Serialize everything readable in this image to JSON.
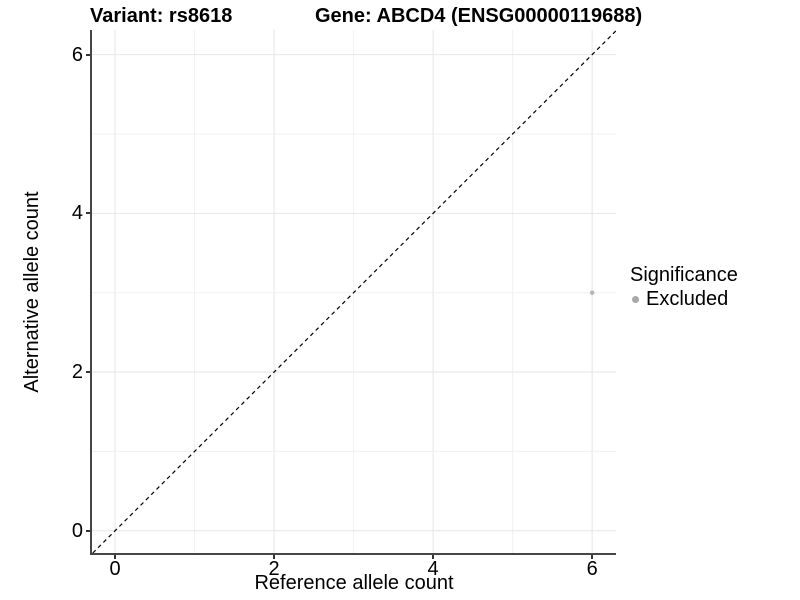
{
  "chart_data": {
    "type": "scatter",
    "title_left": "Variant: rs8618",
    "title_right": "Gene: ABCD4 (ENSG00000119688)",
    "xlabel": "Reference allele count",
    "ylabel": "Alternative allele count",
    "xlim": [
      -0.29,
      6.3
    ],
    "ylim": [
      -0.28,
      6.31
    ],
    "x_ticks": [
      0,
      2,
      4,
      6
    ],
    "y_ticks": [
      0,
      2,
      4,
      6
    ],
    "grid_x": [
      0,
      1,
      2,
      3,
      4,
      5,
      6
    ],
    "grid_y": [
      0,
      1,
      2,
      3,
      4,
      5,
      6
    ],
    "grid_on": true,
    "reference_line": {
      "kind": "identity",
      "equation": "y = x",
      "style": "dashed",
      "color": "#000000"
    },
    "series": [
      {
        "name": "Excluded",
        "color": "#b4b4b4",
        "points": [
          {
            "x": 6,
            "y": 3
          }
        ]
      }
    ],
    "legend": {
      "title": "Significance",
      "position": "right",
      "entries": [
        {
          "label": "Excluded",
          "marker": "circle",
          "color": "#a8a8a8"
        }
      ]
    },
    "colors": {
      "axis_line": "#464646",
      "tick_mark": "#333333",
      "grid_major": "#e6e6e6",
      "grid_minor": "#f0f0f0",
      "point": "#b4b4b4",
      "legend_key": "#a8a8a8",
      "text": "#000000"
    }
  }
}
